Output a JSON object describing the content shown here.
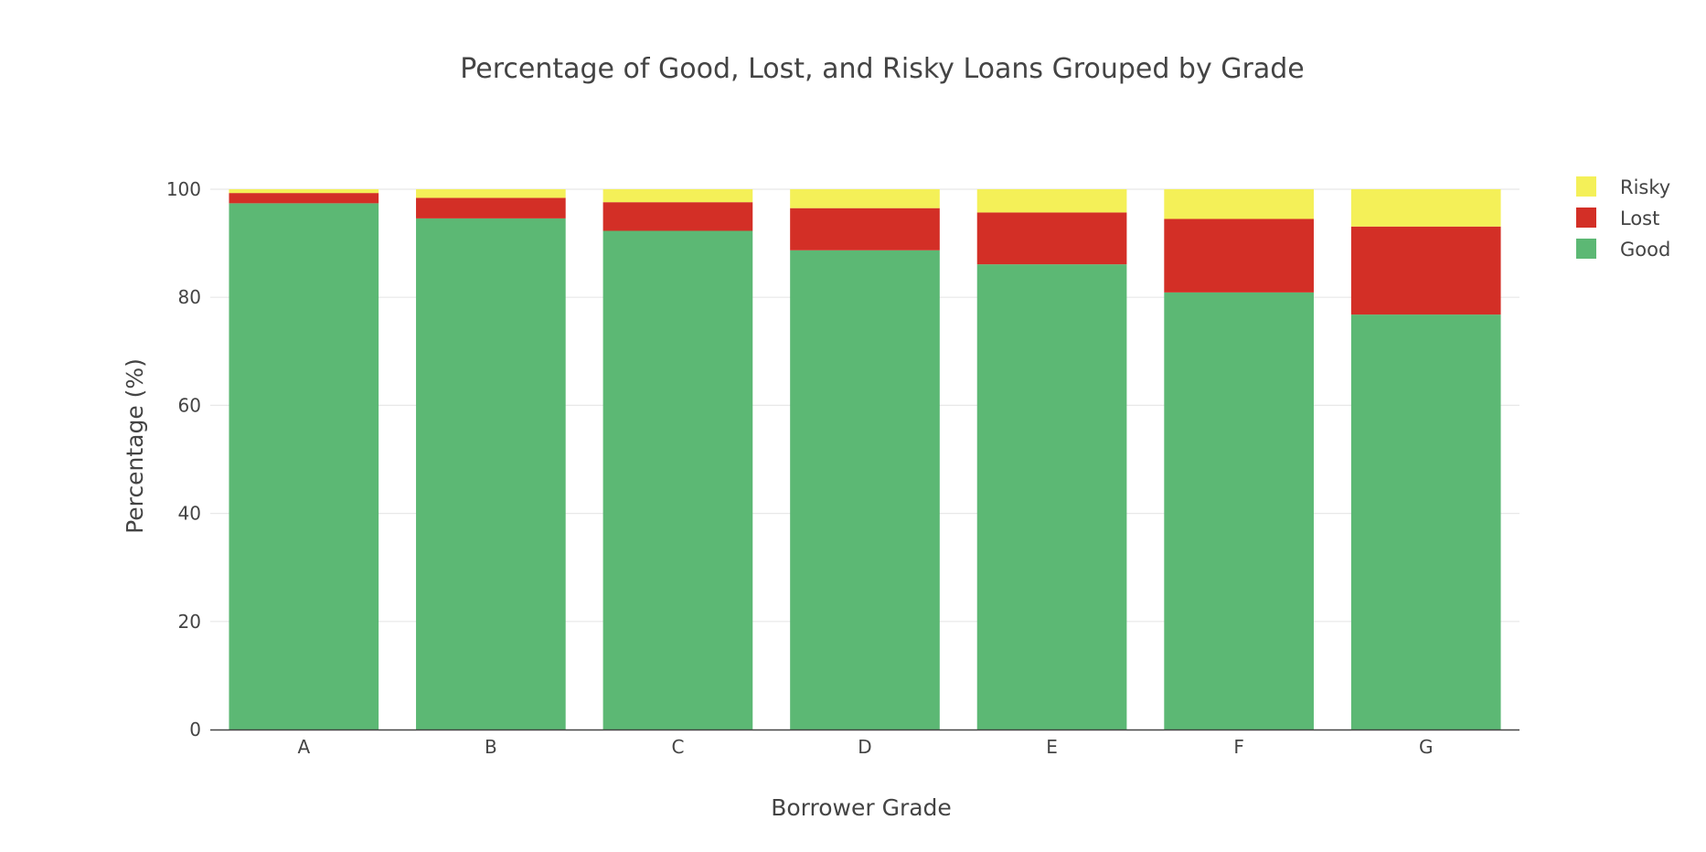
{
  "chart_data": {
    "type": "bar",
    "stacked": true,
    "title": "Percentage of Good, Lost, and Risky Loans Grouped by Grade",
    "xlabel": "Borrower Grade",
    "ylabel": "Percentage (%)",
    "categories": [
      "A",
      "B",
      "C",
      "D",
      "E",
      "F",
      "G"
    ],
    "ylim": [
      0,
      100
    ],
    "yticks": [
      0,
      20,
      40,
      60,
      80,
      100
    ],
    "grid": true,
    "legend": "top-right",
    "series": [
      {
        "name": "Good",
        "color": "#5cb874",
        "values": [
          97.4,
          94.6,
          92.3,
          88.7,
          86.1,
          80.9,
          76.8
        ]
      },
      {
        "name": "Lost",
        "color": "#d32f26",
        "values": [
          1.9,
          3.8,
          5.3,
          7.8,
          9.6,
          13.6,
          16.3
        ]
      },
      {
        "name": "Risky",
        "color": "#f4f058",
        "values": [
          0.7,
          1.6,
          2.4,
          3.5,
          4.3,
          5.5,
          6.9
        ]
      }
    ]
  }
}
